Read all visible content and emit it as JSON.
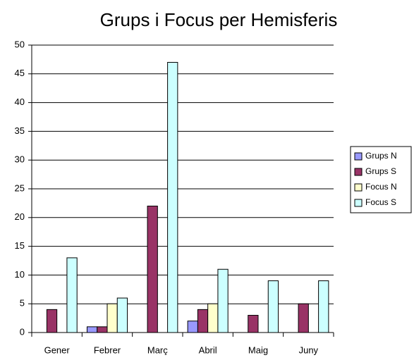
{
  "chart_data": {
    "type": "bar",
    "title": "Grups i Focus per Hemisferis",
    "categories": [
      "Gener",
      "Febrer",
      "Març",
      "Abril",
      "Maig",
      "Juny"
    ],
    "series": [
      {
        "name": "Grups N",
        "color": "#9999ff",
        "values": [
          0,
          1,
          0,
          2,
          0,
          0
        ]
      },
      {
        "name": "Grups S",
        "color": "#993366",
        "values": [
          4,
          1,
          22,
          4,
          3,
          5
        ]
      },
      {
        "name": "Focus N",
        "color": "#ffffcc",
        "values": [
          0,
          5,
          0,
          5,
          0,
          0
        ]
      },
      {
        "name": "Focus S",
        "color": "#ccffff",
        "values": [
          13,
          6,
          47,
          11,
          9,
          9
        ]
      }
    ],
    "ylim": [
      0,
      50
    ],
    "yticks": [
      0,
      5,
      10,
      15,
      20,
      25,
      30,
      35,
      40,
      45,
      50
    ],
    "grid": true,
    "legend": "right"
  }
}
